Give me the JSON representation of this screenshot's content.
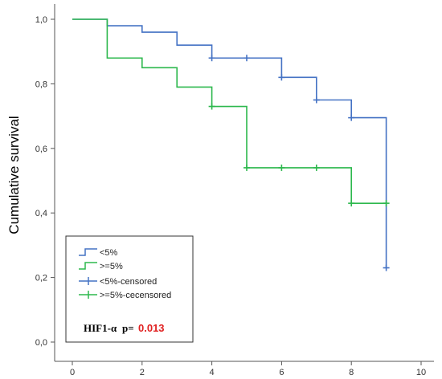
{
  "chart_data": {
    "type": "line",
    "subtype": "kaplan-meier-step",
    "ylabel": "Cumulative survival",
    "xlabel": "",
    "xlim": [
      0,
      10
    ],
    "ylim": [
      0,
      1.0
    ],
    "xticks": [
      0,
      2,
      4,
      6,
      8,
      10
    ],
    "xtick_labels": [
      "0",
      "2",
      "4",
      "6",
      "8",
      "10"
    ],
    "yticks": [
      0,
      0.2,
      0.4,
      0.6,
      0.8,
      1.0
    ],
    "ytick_labels": [
      "0,0",
      "0,2",
      "0,4",
      "0,6",
      "0,8",
      "1,0"
    ],
    "grid": false,
    "legend_position": "bottom-left",
    "series": [
      {
        "name": "<5%",
        "color": "#4472c4",
        "x": [
          0,
          1,
          2,
          3,
          4,
          5,
          6,
          7,
          8,
          9
        ],
        "y": [
          1.0,
          0.98,
          0.96,
          0.92,
          0.88,
          0.88,
          0.82,
          0.75,
          0.695,
          0.23
        ],
        "censored": [
          {
            "x": 4,
            "y": 0.88
          },
          {
            "x": 5,
            "y": 0.88
          },
          {
            "x": 6,
            "y": 0.82
          },
          {
            "x": 7,
            "y": 0.75
          },
          {
            "x": 8,
            "y": 0.695
          },
          {
            "x": 9,
            "y": 0.23
          }
        ]
      },
      {
        "name": ">=5%",
        "color": "#2db84d",
        "x": [
          0,
          1,
          2,
          3,
          4,
          5,
          8,
          9
        ],
        "y": [
          1.0,
          0.88,
          0.85,
          0.79,
          0.73,
          0.54,
          0.43,
          0.43
        ],
        "censored": [
          {
            "x": 4,
            "y": 0.73
          },
          {
            "x": 5,
            "y": 0.54
          },
          {
            "x": 6,
            "y": 0.54
          },
          {
            "x": 7,
            "y": 0.54
          },
          {
            "x": 8,
            "y": 0.43
          },
          {
            "x": 9,
            "y": 0.43
          }
        ]
      }
    ],
    "legend_entries": [
      "<5%",
      ">=5%",
      "<5%-censored",
      ">=5%-cecensored"
    ],
    "annotation": {
      "label": "HIF1-α",
      "p_label": "p=",
      "p_value": "0.013",
      "p_color": "#e02020"
    }
  }
}
